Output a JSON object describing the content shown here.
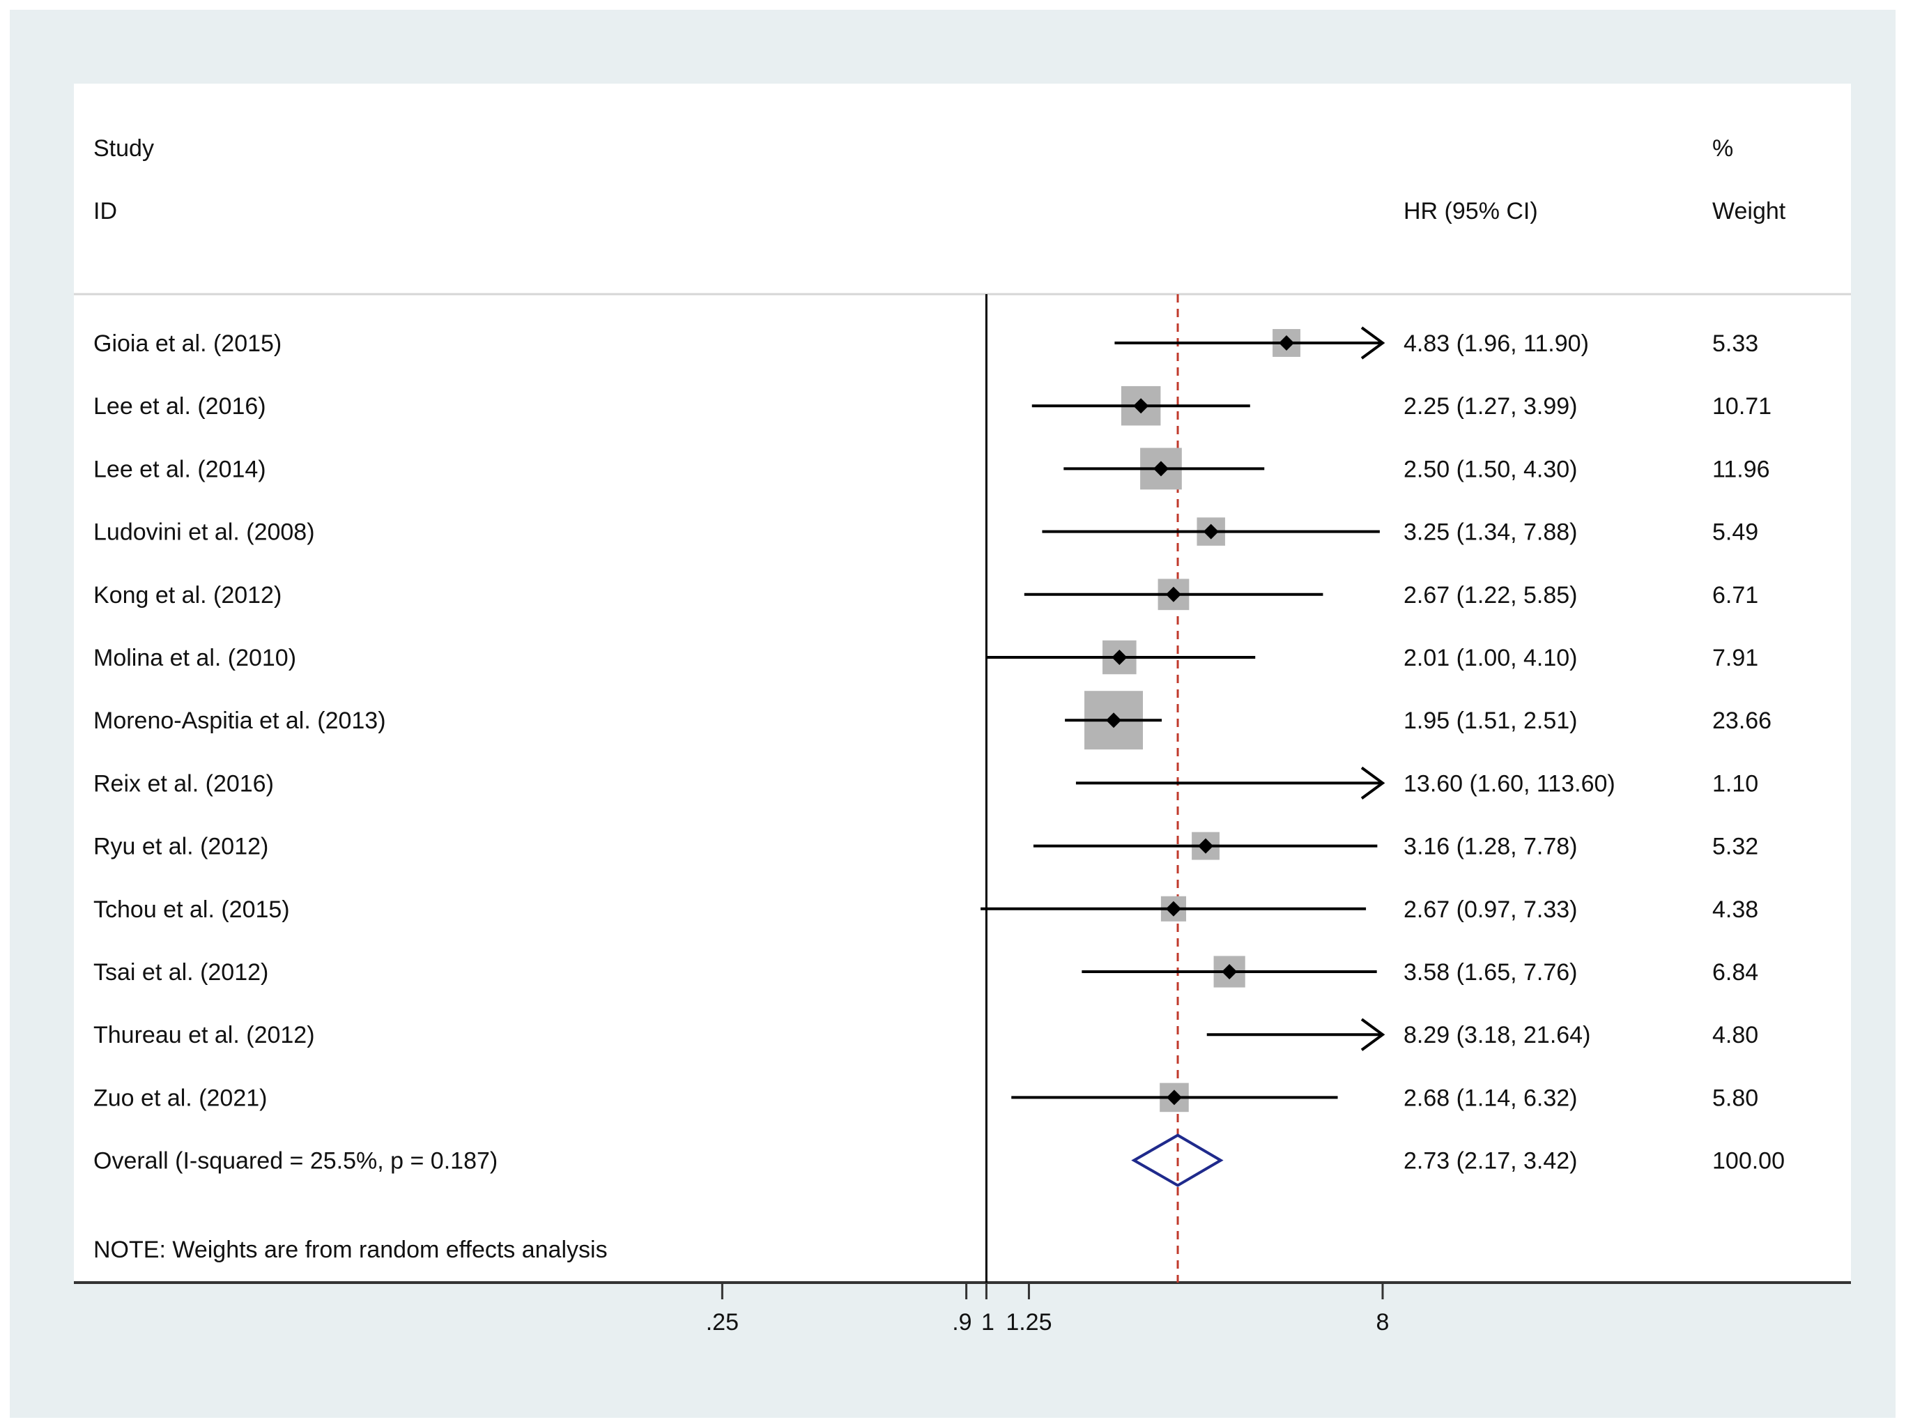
{
  "chart_data": {
    "type": "forest",
    "headers": {
      "study_line1": "Study",
      "study_line2": "ID",
      "effect": "HR (95% CI)",
      "weight_line1": "%",
      "weight_line2": "Weight"
    },
    "studies": [
      {
        "label": "Gioia et al. (2015)",
        "hr": 4.83,
        "lo": 1.96,
        "hi": 11.9,
        "ci_text": "4.83 (1.96, 11.90)",
        "weight": 5.33,
        "weight_text": "5.33"
      },
      {
        "label": "Lee et al.  (2016)",
        "hr": 2.25,
        "lo": 1.27,
        "hi": 3.99,
        "ci_text": "2.25 (1.27, 3.99)",
        "weight": 10.71,
        "weight_text": "10.71"
      },
      {
        "label": "Lee et al.  (2014)",
        "hr": 2.5,
        "lo": 1.5,
        "hi": 4.3,
        "ci_text": "2.50 (1.50, 4.30)",
        "weight": 11.96,
        "weight_text": "11.96"
      },
      {
        "label": "Ludovini et al.  (2008)",
        "hr": 3.25,
        "lo": 1.34,
        "hi": 7.88,
        "ci_text": "3.25 (1.34, 7.88)",
        "weight": 5.49,
        "weight_text": "5.49"
      },
      {
        "label": "Kong et al. (2012)",
        "hr": 2.67,
        "lo": 1.22,
        "hi": 5.85,
        "ci_text": "2.67 (1.22, 5.85)",
        "weight": 6.71,
        "weight_text": "6.71"
      },
      {
        "label": "Molina et al. (2010)",
        "hr": 2.01,
        "lo": 1.0,
        "hi": 4.1,
        "ci_text": "2.01 (1.00, 4.10)",
        "weight": 7.91,
        "weight_text": "7.91"
      },
      {
        "label": "Moreno-Aspitia et al.  (2013)",
        "hr": 1.95,
        "lo": 1.51,
        "hi": 2.51,
        "ci_text": "1.95 (1.51, 2.51)",
        "weight": 23.66,
        "weight_text": "23.66"
      },
      {
        "label": "Reix et al.  (2016)",
        "hr": 13.6,
        "lo": 1.6,
        "hi": 113.6,
        "ci_text": "13.60 (1.60, 113.60)",
        "weight": 1.1,
        "weight_text": "1.10"
      },
      {
        "label": "Ryu et al.  (2012)",
        "hr": 3.16,
        "lo": 1.28,
        "hi": 7.78,
        "ci_text": "3.16 (1.28, 7.78)",
        "weight": 5.32,
        "weight_text": "5.32"
      },
      {
        "label": "Tchou et al.  (2015)",
        "hr": 2.67,
        "lo": 0.97,
        "hi": 7.33,
        "ci_text": "2.67 (0.97, 7.33)",
        "weight": 4.38,
        "weight_text": "4.38"
      },
      {
        "label": "Tsai et al.  (2012)",
        "hr": 3.58,
        "lo": 1.65,
        "hi": 7.76,
        "ci_text": "3.58 (1.65, 7.76)",
        "weight": 6.84,
        "weight_text": "6.84"
      },
      {
        "label": "Thureau et al. (2012)",
        "hr": 8.29,
        "lo": 3.18,
        "hi": 21.64,
        "ci_text": "8.29 (3.18, 21.64)",
        "weight": 4.8,
        "weight_text": "4.80"
      },
      {
        "label": "Zuo et al.  (2021)",
        "hr": 2.68,
        "lo": 1.14,
        "hi": 6.32,
        "ci_text": "2.68 (1.14, 6.32)",
        "weight": 5.8,
        "weight_text": "5.80"
      }
    ],
    "overall": {
      "label": "Overall  (I-squared = 25.5%, p = 0.187)",
      "hr": 2.73,
      "lo": 2.17,
      "hi": 3.42,
      "ci_text": "2.73 (2.17, 3.42)",
      "weight_text": "100.00"
    },
    "note": "NOTE: Weights are from random effects analysis",
    "x_ticks": [
      {
        "value": 0.25,
        "label": ".25"
      },
      {
        "value": 0.9,
        "label": ".9"
      },
      {
        "value": 1,
        "label": "1"
      },
      {
        "value": 1.25,
        "label": "1.25"
      },
      {
        "value": 8,
        "label": "8"
      }
    ],
    "x_scale": "log",
    "xlim": [
      0.0769,
      8
    ],
    "null_line": 1,
    "colors": {
      "background": "#e8eff1",
      "panel": "#ffffff",
      "weight_box": "#b4b4b4",
      "point": "#000000",
      "ci_line": "#000000",
      "overall_line": "#c0392b",
      "diamond": "#1f2a8c"
    }
  }
}
